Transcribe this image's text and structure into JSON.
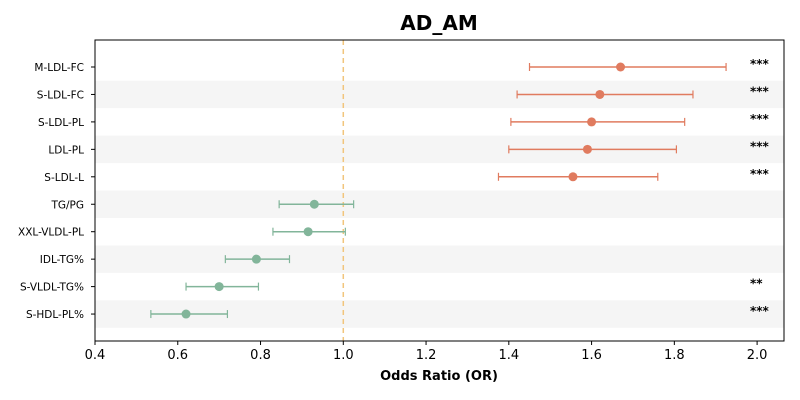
{
  "chart_data": {
    "type": "forest",
    "title": "AD_AM",
    "xlabel": "Odds Ratio (OR)",
    "ylabel": "",
    "xlim": [
      0.4,
      2.065
    ],
    "xticks": [
      "0.4",
      "0.6",
      "0.8",
      "1.0",
      "1.2",
      "1.4",
      "1.6",
      "1.8",
      "2.0"
    ],
    "reference_line": 1.0,
    "colors": {
      "above": "#e07b5f",
      "below": "#82b59a",
      "reference": "#f2c57c",
      "band": "#f5f5f5"
    },
    "rows": [
      {
        "label": "M-LDL-FC",
        "or": 1.67,
        "lo": 1.45,
        "hi": 1.925,
        "sig": "***"
      },
      {
        "label": "S-LDL-FC",
        "or": 1.62,
        "lo": 1.42,
        "hi": 1.845,
        "sig": "***"
      },
      {
        "label": "S-LDL-PL",
        "or": 1.6,
        "lo": 1.405,
        "hi": 1.825,
        "sig": "***"
      },
      {
        "label": "LDL-PL",
        "or": 1.59,
        "lo": 1.4,
        "hi": 1.805,
        "sig": "***"
      },
      {
        "label": "S-LDL-L",
        "or": 1.555,
        "lo": 1.375,
        "hi": 1.76,
        "sig": "***"
      },
      {
        "label": "TG/PG",
        "or": 0.93,
        "lo": 0.845,
        "hi": 1.025,
        "sig": ""
      },
      {
        "label": "XXL-VLDL-PL",
        "or": 0.915,
        "lo": 0.83,
        "hi": 1.005,
        "sig": ""
      },
      {
        "label": "IDL-TG%",
        "or": 0.79,
        "lo": 0.715,
        "hi": 0.87,
        "sig": ""
      },
      {
        "label": "S-VLDL-TG%",
        "or": 0.7,
        "lo": 0.62,
        "hi": 0.795,
        "sig": "**"
      },
      {
        "label": "S-HDL-PL%",
        "or": 0.62,
        "lo": 0.535,
        "hi": 0.72,
        "sig": "***"
      }
    ]
  }
}
